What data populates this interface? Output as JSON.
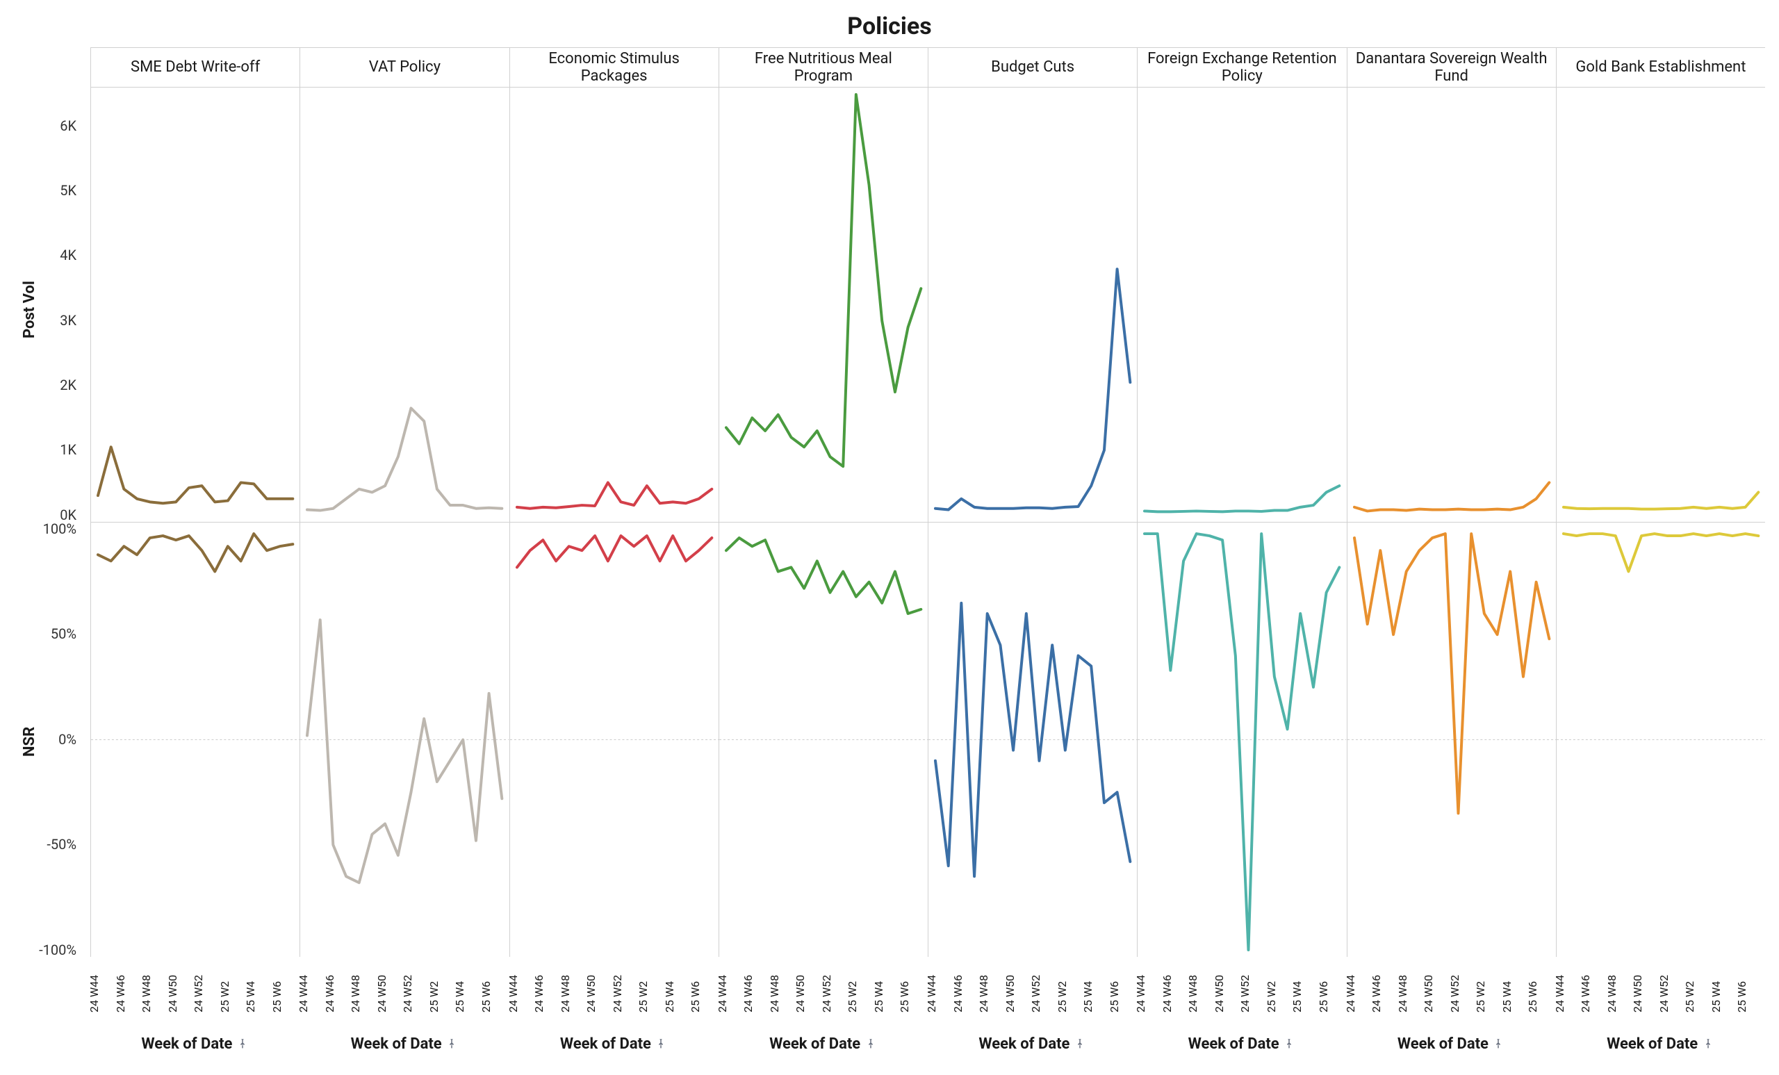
{
  "title": "Policies",
  "layout": {
    "x_labels": [
      "24 W44",
      "24 W46",
      "24 W48",
      "24 W50",
      "24 W52",
      "25 W2",
      "25 W4",
      "25 W6"
    ],
    "x_title": "Week of Date",
    "rows": [
      "Post Vol",
      "NSR"
    ],
    "post_vol": {
      "ylim": [
        0,
        6500
      ],
      "yticks": [
        0,
        1000,
        2000,
        3000,
        4000,
        5000,
        6000
      ],
      "ytick_labels": [
        "0K",
        "1K",
        "2K",
        "3K",
        "4K",
        "5K",
        "6K"
      ]
    },
    "nsr": {
      "ylim": [
        -100,
        100
      ],
      "yticks": [
        -100,
        -50,
        0,
        50,
        100
      ],
      "ytick_labels": [
        "-100%",
        "-50%",
        "0%",
        "50%",
        "100%"
      ],
      "zero_line": true
    },
    "line_width": 4,
    "grid_color": "#d0d0d0",
    "background_color": "#ffffff",
    "title_fontsize": 34,
    "header_fontsize": 22,
    "tick_fontsize": 20
  },
  "policies": [
    {
      "name": "SME Debt Write-off",
      "color": "#8a6d3b",
      "post_vol": [
        300,
        1050,
        400,
        250,
        200,
        180,
        200,
        420,
        450,
        200,
        220,
        500,
        480,
        250,
        250,
        250
      ],
      "nsr": [
        88,
        85,
        92,
        88,
        96,
        97,
        95,
        97,
        90,
        80,
        92,
        85,
        98,
        90,
        92,
        93
      ]
    },
    {
      "name": "VAT Policy",
      "color": "#bdb7af",
      "post_vol": [
        80,
        70,
        100,
        250,
        400,
        350,
        450,
        900,
        1650,
        1450,
        400,
        150,
        150,
        100,
        110,
        100
      ],
      "nsr": [
        2,
        57,
        -50,
        -65,
        -68,
        -45,
        -40,
        -55,
        -25,
        10,
        -20,
        -10,
        0,
        -48,
        22,
        -28
      ]
    },
    {
      "name": "Economic Stimulus Packages",
      "color": "#d33f49",
      "post_vol": [
        120,
        100,
        120,
        110,
        130,
        150,
        140,
        500,
        200,
        150,
        450,
        180,
        200,
        180,
        250,
        400
      ],
      "nsr": [
        82,
        90,
        95,
        85,
        92,
        90,
        97,
        85,
        97,
        92,
        97,
        85,
        97,
        85,
        90,
        96
      ]
    },
    {
      "name": "Free Nutritious Meal Program",
      "color": "#4a9b3f",
      "post_vol": [
        1350,
        1100,
        1500,
        1300,
        1550,
        1200,
        1050,
        1300,
        900,
        750,
        6500,
        5100,
        3000,
        1900,
        2900,
        3500
      ],
      "nsr": [
        90,
        96,
        92,
        95,
        80,
        82,
        72,
        85,
        70,
        80,
        68,
        75,
        65,
        80,
        60,
        62
      ]
    },
    {
      "name": "Budget Cuts",
      "color": "#3b6fa6",
      "post_vol": [
        100,
        80,
        250,
        120,
        100,
        100,
        100,
        110,
        110,
        100,
        120,
        130,
        450,
        1000,
        3800,
        2050
      ],
      "nsr": [
        -10,
        -60,
        65,
        -65,
        60,
        45,
        -5,
        60,
        -10,
        45,
        -5,
        40,
        35,
        -30,
        -25,
        -58
      ]
    },
    {
      "name": "Foreign Exchange Retention Policy",
      "color": "#4fb3a9",
      "post_vol": [
        60,
        50,
        50,
        55,
        60,
        55,
        50,
        60,
        60,
        55,
        70,
        70,
        120,
        150,
        350,
        450
      ],
      "nsr": [
        98,
        98,
        33,
        85,
        98,
        97,
        95,
        40,
        -100,
        98,
        30,
        5,
        60,
        25,
        70,
        82
      ]
    },
    {
      "name": "Danantara Sovereign Wealth Fund",
      "color": "#e8902e",
      "post_vol": [
        120,
        60,
        80,
        80,
        70,
        90,
        80,
        80,
        90,
        80,
        80,
        90,
        80,
        120,
        250,
        500
      ],
      "nsr": [
        96,
        55,
        90,
        50,
        80,
        90,
        96,
        98,
        -35,
        98,
        60,
        50,
        80,
        30,
        75,
        48
      ]
    },
    {
      "name": "Gold Bank Establishment",
      "color": "#ddc93a",
      "post_vol": [
        120,
        100,
        95,
        100,
        100,
        100,
        90,
        90,
        95,
        100,
        120,
        100,
        120,
        100,
        120,
        350
      ],
      "nsr": [
        98,
        97,
        98,
        98,
        97,
        80,
        97,
        98,
        97,
        97,
        98,
        97,
        98,
        97,
        98,
        97
      ]
    }
  ]
}
